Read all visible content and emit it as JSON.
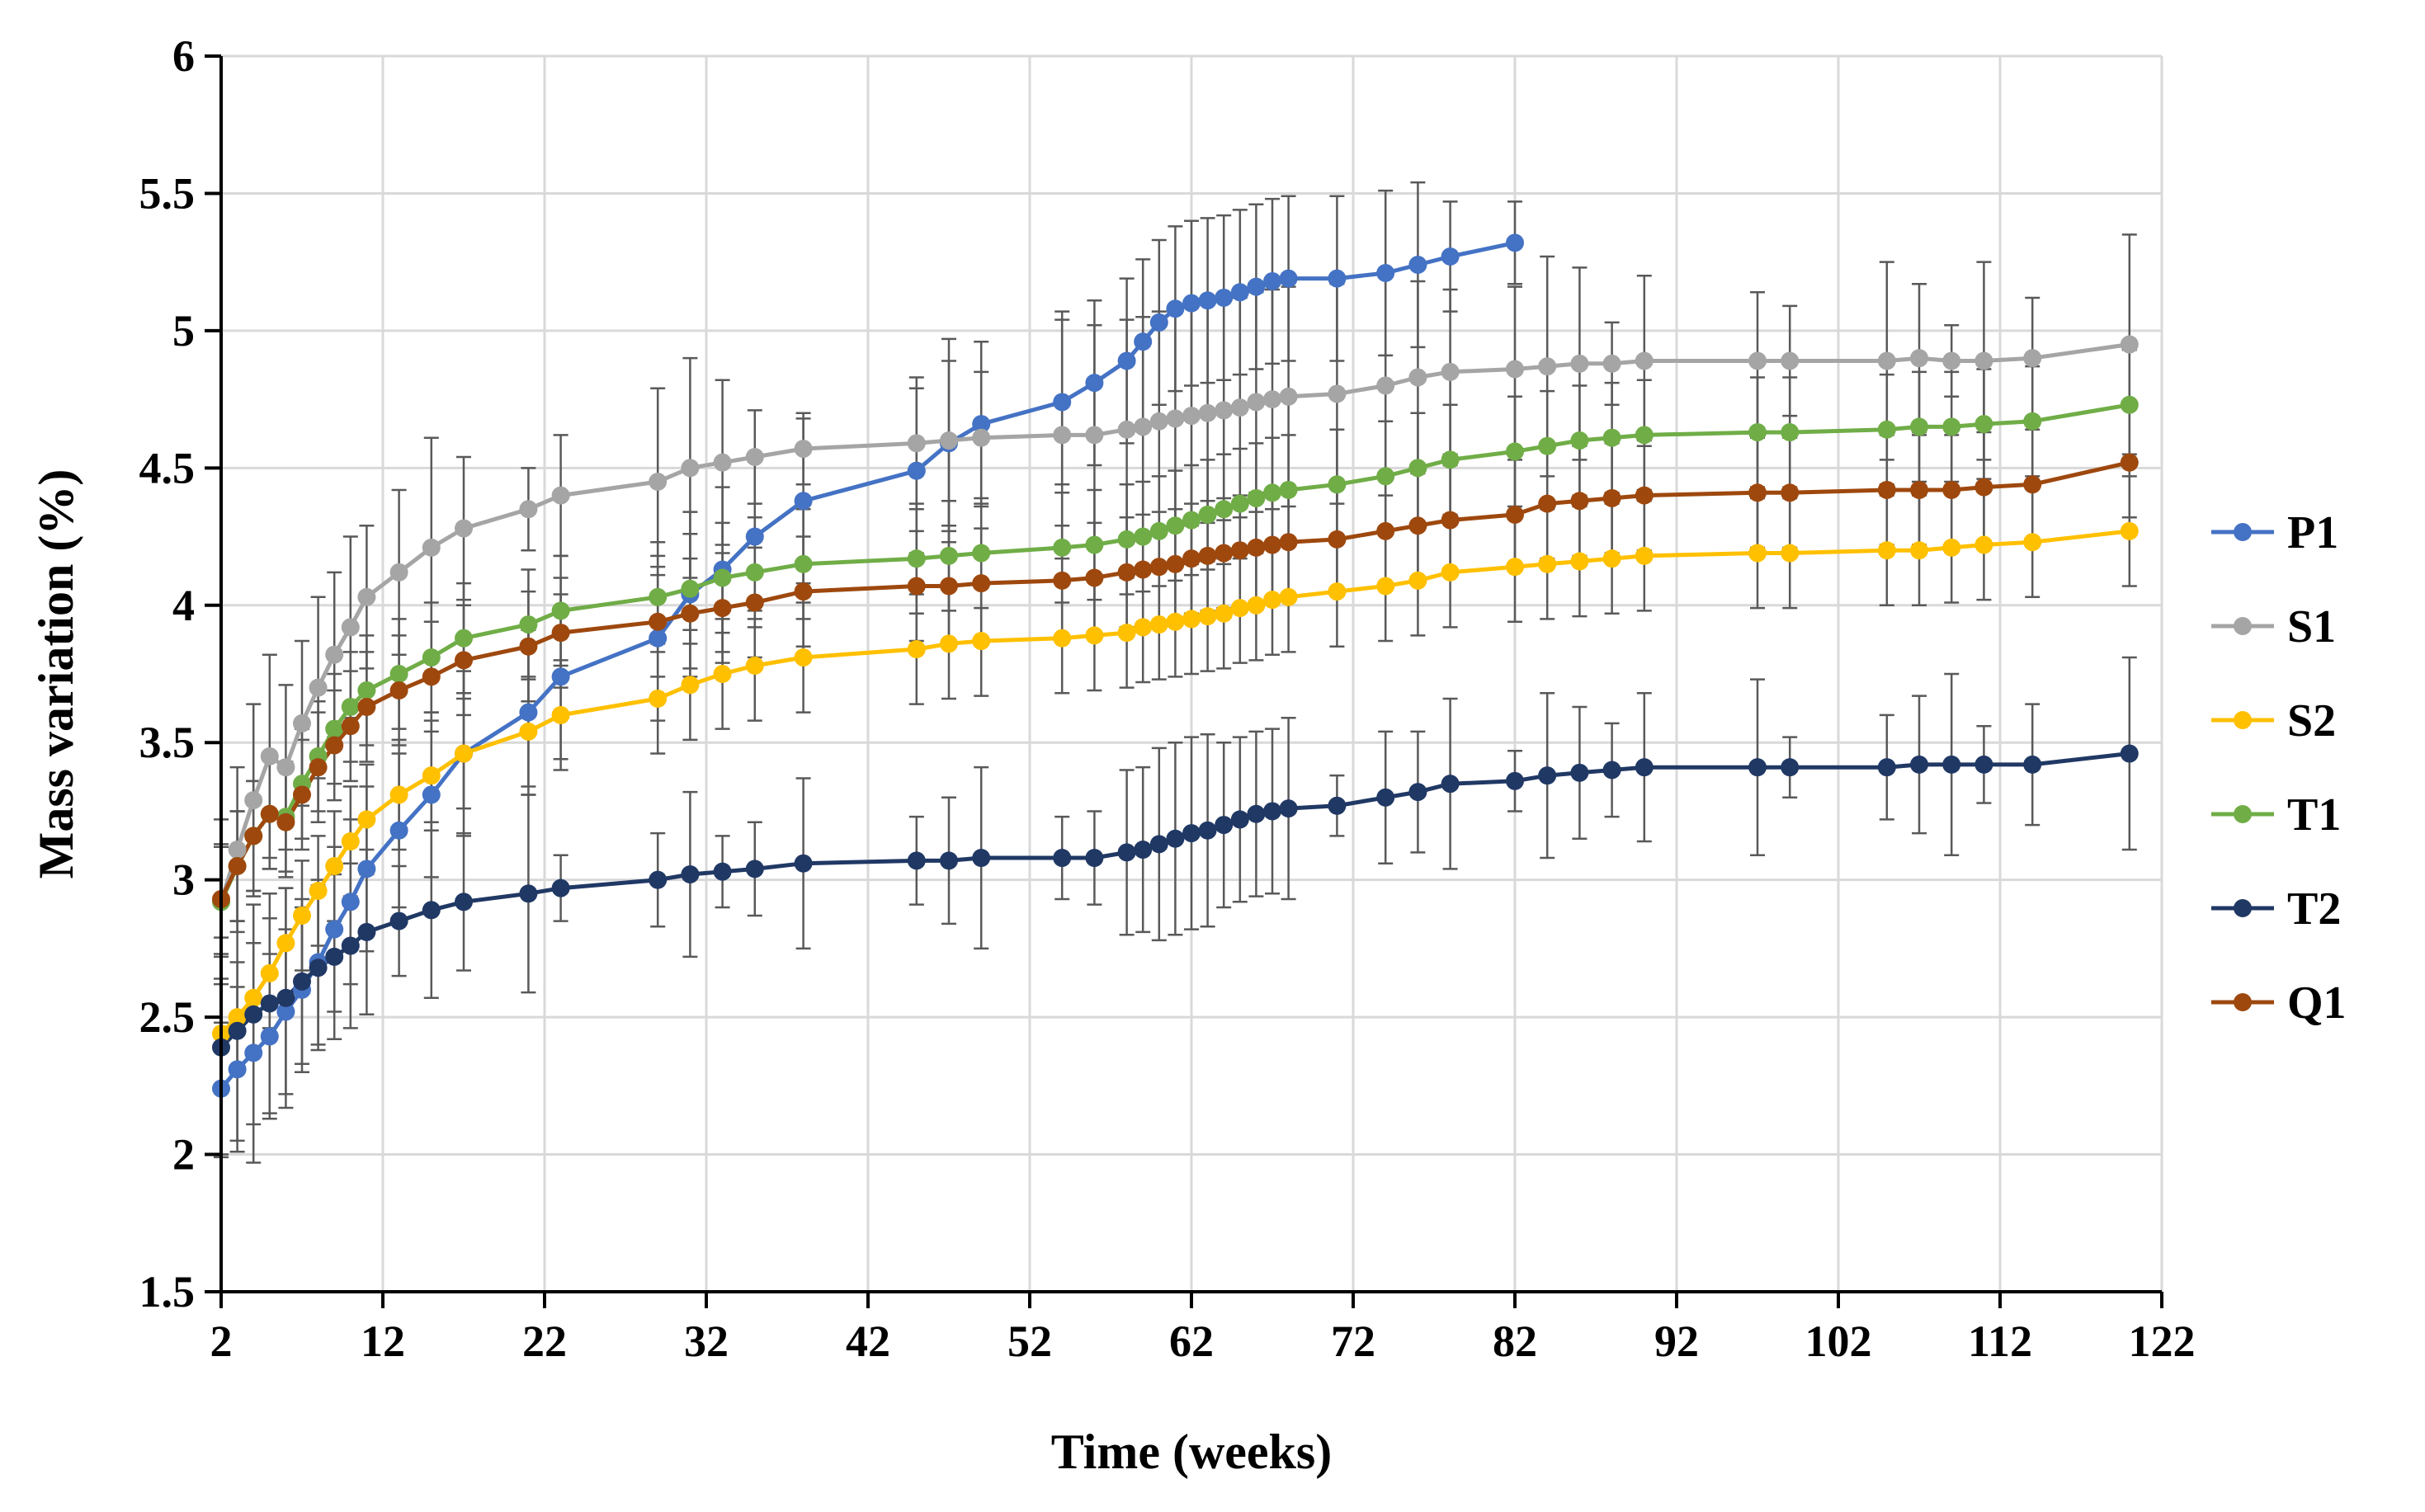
{
  "chart_data": {
    "type": "line",
    "xlabel": "Time (weeks)",
    "ylabel": "Mass variation (%)",
    "xlim": [
      2,
      122
    ],
    "ylim": [
      1.5,
      6
    ],
    "x_ticks": [
      2,
      12,
      22,
      32,
      42,
      52,
      62,
      72,
      82,
      92,
      102,
      112,
      122
    ],
    "y_ticks": [
      1.5,
      2,
      2.5,
      3,
      3.5,
      4,
      4.5,
      5,
      5.5,
      6
    ],
    "grid": true,
    "legend_position": "right",
    "series": [
      {
        "name": "P1",
        "color": "#4472C4",
        "x": [
          2,
          3,
          4,
          5,
          6,
          7,
          8,
          9,
          10,
          11,
          13,
          15,
          17,
          21,
          23,
          29,
          31,
          33,
          35,
          38,
          45,
          47,
          49,
          54,
          56,
          58,
          59,
          60,
          61,
          62,
          63,
          64,
          65,
          66,
          67,
          68,
          71,
          74,
          76,
          78,
          82
        ],
        "y": [
          2.24,
          2.31,
          2.37,
          2.43,
          2.52,
          2.6,
          2.7,
          2.82,
          2.92,
          3.04,
          3.18,
          3.31,
          3.46,
          3.61,
          3.74,
          3.88,
          4.04,
          4.13,
          4.25,
          4.38,
          4.49,
          4.59,
          4.66,
          4.74,
          4.81,
          4.89,
          4.96,
          5.03,
          5.08,
          5.1,
          5.11,
          5.12,
          5.14,
          5.16,
          5.18,
          5.19,
          5.19,
          5.21,
          5.24,
          5.27,
          5.32
        ],
        "err": [
          0.24,
          0.3,
          0.4,
          0.3,
          0.3,
          0.3,
          0.3,
          0.3,
          0.3,
          0.3,
          0.28,
          0.3,
          0.3,
          0.3,
          0.3,
          0.3,
          0.3,
          0.3,
          0.3,
          0.3,
          0.3,
          0.3,
          0.3,
          0.3,
          0.3,
          0.3,
          0.3,
          0.3,
          0.3,
          0.3,
          0.3,
          0.3,
          0.3,
          0.3,
          0.3,
          0.3,
          0.3,
          0.3,
          0.3,
          0.2,
          0.15
        ]
      },
      {
        "name": "S1",
        "color": "#A5A5A5",
        "x": [
          2,
          3,
          4,
          5,
          6,
          7,
          8,
          9,
          10,
          11,
          13,
          15,
          17,
          21,
          23,
          29,
          31,
          33,
          35,
          38,
          45,
          47,
          49,
          54,
          56,
          58,
          59,
          60,
          61,
          62,
          63,
          64,
          65,
          66,
          67,
          68,
          71,
          74,
          76,
          78,
          82,
          84,
          86,
          88,
          90,
          97,
          99,
          105,
          107,
          109,
          111,
          114,
          120
        ],
        "y": [
          2.92,
          3.11,
          3.29,
          3.45,
          3.41,
          3.57,
          3.7,
          3.82,
          3.92,
          4.03,
          4.12,
          4.21,
          4.28,
          4.35,
          4.4,
          4.45,
          4.5,
          4.52,
          4.54,
          4.57,
          4.59,
          4.6,
          4.61,
          4.62,
          4.62,
          4.64,
          4.65,
          4.67,
          4.68,
          4.69,
          4.7,
          4.71,
          4.72,
          4.74,
          4.75,
          4.76,
          4.77,
          4.8,
          4.83,
          4.85,
          4.86,
          4.87,
          4.88,
          4.88,
          4.89,
          4.89,
          4.89,
          4.89,
          4.9,
          4.89,
          4.89,
          4.9,
          4.95
        ],
        "err": [
          0.3,
          0.3,
          0.35,
          0.37,
          0.3,
          0.3,
          0.33,
          0.3,
          0.33,
          0.26,
          0.3,
          0.4,
          0.26,
          0.15,
          0.22,
          0.34,
          0.4,
          0.3,
          0.17,
          0.13,
          0.24,
          0.37,
          0.24,
          0.45,
          0.4,
          0.4,
          0.4,
          0.4,
          0.4,
          0.4,
          0.4,
          0.4,
          0.4,
          0.4,
          0.4,
          0.4,
          0.4,
          0.4,
          0.35,
          0.3,
          0.3,
          0.4,
          0.35,
          0.15,
          0.31,
          0.25,
          0.2,
          0.36,
          0.27,
          0.13,
          0.36,
          0.22,
          0.4
        ]
      },
      {
        "name": "S2",
        "color": "#FFC000",
        "x": [
          2,
          3,
          4,
          5,
          6,
          7,
          8,
          9,
          10,
          11,
          13,
          15,
          17,
          21,
          23,
          29,
          31,
          33,
          35,
          38,
          45,
          47,
          49,
          54,
          56,
          58,
          59,
          60,
          61,
          62,
          63,
          64,
          65,
          66,
          67,
          68,
          71,
          74,
          76,
          78,
          82,
          84,
          86,
          88,
          90,
          97,
          99,
          105,
          107,
          109,
          111,
          114,
          120
        ],
        "y": [
          2.44,
          2.5,
          2.57,
          2.66,
          2.77,
          2.87,
          2.96,
          3.05,
          3.14,
          3.22,
          3.31,
          3.38,
          3.46,
          3.54,
          3.6,
          3.66,
          3.71,
          3.75,
          3.78,
          3.81,
          3.84,
          3.86,
          3.87,
          3.88,
          3.89,
          3.9,
          3.92,
          3.93,
          3.94,
          3.95,
          3.96,
          3.97,
          3.99,
          4.0,
          4.02,
          4.03,
          4.05,
          4.07,
          4.09,
          4.12,
          4.14,
          4.15,
          4.16,
          4.17,
          4.18,
          4.19,
          4.19,
          4.2,
          4.2,
          4.21,
          4.22,
          4.23,
          4.27
        ],
        "err": [
          0.2,
          0.2,
          0.2,
          0.2,
          0.2,
          0.2,
          0.2,
          0.2,
          0.2,
          0.2,
          0.2,
          0.2,
          0.2,
          0.2,
          0.2,
          0.2,
          0.2,
          0.2,
          0.2,
          0.2,
          0.2,
          0.2,
          0.2,
          0.2,
          0.2,
          0.2,
          0.2,
          0.2,
          0.2,
          0.2,
          0.2,
          0.2,
          0.2,
          0.2,
          0.2,
          0.2,
          0.2,
          0.2,
          0.2,
          0.2,
          0.2,
          0.2,
          0.2,
          0.2,
          0.2,
          0.2,
          0.2,
          0.2,
          0.2,
          0.2,
          0.2,
          0.2,
          0.2
        ]
      },
      {
        "name": "T1",
        "color": "#70AD47",
        "x": [
          2,
          3,
          4,
          5,
          6,
          7,
          8,
          9,
          10,
          11,
          13,
          15,
          17,
          21,
          23,
          29,
          31,
          33,
          35,
          38,
          45,
          47,
          49,
          54,
          56,
          58,
          59,
          60,
          61,
          62,
          63,
          64,
          65,
          66,
          67,
          68,
          71,
          74,
          76,
          78,
          82,
          84,
          86,
          88,
          90,
          97,
          99,
          105,
          107,
          109,
          111,
          114,
          120
        ],
        "y": [
          2.92,
          3.05,
          3.16,
          3.24,
          3.23,
          3.35,
          3.45,
          3.55,
          3.63,
          3.69,
          3.75,
          3.81,
          3.88,
          3.93,
          3.98,
          4.03,
          4.06,
          4.1,
          4.12,
          4.15,
          4.17,
          4.18,
          4.19,
          4.21,
          4.22,
          4.24,
          4.25,
          4.27,
          4.29,
          4.31,
          4.33,
          4.35,
          4.37,
          4.39,
          4.41,
          4.42,
          4.44,
          4.47,
          4.5,
          4.53,
          4.56,
          4.58,
          4.6,
          4.61,
          4.62,
          4.63,
          4.63,
          4.64,
          4.65,
          4.65,
          4.66,
          4.67,
          4.73
        ],
        "err": [
          0.2,
          0.2,
          0.2,
          0.2,
          0.2,
          0.2,
          0.2,
          0.2,
          0.2,
          0.2,
          0.2,
          0.2,
          0.2,
          0.2,
          0.2,
          0.2,
          0.2,
          0.2,
          0.2,
          0.2,
          0.2,
          0.2,
          0.2,
          0.2,
          0.2,
          0.2,
          0.2,
          0.2,
          0.2,
          0.2,
          0.2,
          0.2,
          0.2,
          0.2,
          0.2,
          0.2,
          0.2,
          0.2,
          0.2,
          0.2,
          0.2,
          0.2,
          0.2,
          0.2,
          0.2,
          0.2,
          0.2,
          0.2,
          0.2,
          0.2,
          0.2,
          0.2,
          0.2
        ]
      },
      {
        "name": "T2",
        "color": "#203864",
        "x": [
          2,
          3,
          4,
          5,
          6,
          7,
          8,
          9,
          10,
          11,
          13,
          15,
          17,
          21,
          23,
          29,
          31,
          33,
          35,
          38,
          45,
          47,
          49,
          54,
          56,
          58,
          59,
          60,
          61,
          62,
          63,
          64,
          65,
          66,
          67,
          68,
          71,
          74,
          76,
          78,
          82,
          84,
          86,
          88,
          90,
          97,
          99,
          105,
          107,
          109,
          111,
          114,
          120
        ],
        "y": [
          2.39,
          2.45,
          2.51,
          2.55,
          2.57,
          2.63,
          2.68,
          2.72,
          2.76,
          2.81,
          2.85,
          2.89,
          2.92,
          2.95,
          2.97,
          3.0,
          3.02,
          3.03,
          3.04,
          3.06,
          3.07,
          3.07,
          3.08,
          3.08,
          3.08,
          3.1,
          3.11,
          3.13,
          3.15,
          3.17,
          3.18,
          3.2,
          3.22,
          3.24,
          3.25,
          3.26,
          3.27,
          3.3,
          3.32,
          3.35,
          3.36,
          3.38,
          3.39,
          3.4,
          3.41,
          3.41,
          3.41,
          3.41,
          3.42,
          3.42,
          3.42,
          3.42,
          3.46
        ],
        "err": [
          0.4,
          0.4,
          0.4,
          0.4,
          0.4,
          0.3,
          0.3,
          0.3,
          0.3,
          0.3,
          0.2,
          0.32,
          0.25,
          0.36,
          0.12,
          0.17,
          0.3,
          0.13,
          0.17,
          0.31,
          0.16,
          0.23,
          0.33,
          0.15,
          0.17,
          0.3,
          0.3,
          0.35,
          0.35,
          0.35,
          0.35,
          0.3,
          0.3,
          0.3,
          0.3,
          0.33,
          0.11,
          0.24,
          0.22,
          0.31,
          0.11,
          0.3,
          0.24,
          0.17,
          0.27,
          0.32,
          0.11,
          0.19,
          0.25,
          0.33,
          0.14,
          0.22,
          0.35
        ]
      },
      {
        "name": "Q1",
        "color": "#9E480E",
        "x": [
          2,
          3,
          4,
          5,
          6,
          7,
          8,
          9,
          10,
          11,
          13,
          15,
          17,
          21,
          23,
          29,
          31,
          33,
          35,
          38,
          45,
          47,
          49,
          54,
          56,
          58,
          59,
          60,
          61,
          62,
          63,
          64,
          65,
          66,
          67,
          68,
          71,
          74,
          76,
          78,
          82,
          84,
          86,
          88,
          90,
          97,
          99,
          105,
          107,
          109,
          111,
          114,
          120
        ],
        "y": [
          2.93,
          3.05,
          3.16,
          3.24,
          3.21,
          3.31,
          3.41,
          3.49,
          3.56,
          3.63,
          3.69,
          3.74,
          3.8,
          3.85,
          3.9,
          3.94,
          3.97,
          3.99,
          4.01,
          4.05,
          4.07,
          4.07,
          4.08,
          4.09,
          4.1,
          4.12,
          4.13,
          4.14,
          4.15,
          4.17,
          4.18,
          4.19,
          4.2,
          4.21,
          4.22,
          4.23,
          4.24,
          4.27,
          4.29,
          4.31,
          4.33,
          4.37,
          4.38,
          4.39,
          4.4,
          4.41,
          4.41,
          4.42,
          4.42,
          4.42,
          4.43,
          4.44,
          4.52
        ],
        "err": [
          0.2,
          0.2,
          0.2,
          0.2,
          0.2,
          0.2,
          0.2,
          0.2,
          0.2,
          0.2,
          0.2,
          0.2,
          0.2,
          0.2,
          0.2,
          0.2,
          0.2,
          0.2,
          0.2,
          0.2,
          0.2,
          0.2,
          0.2,
          0.2,
          0.2,
          0.2,
          0.2,
          0.2,
          0.2,
          0.2,
          0.2,
          0.2,
          0.2,
          0.2,
          0.2,
          0.2,
          0.2,
          0.2,
          0.2,
          0.2,
          0.2,
          0.2,
          0.2,
          0.2,
          0.2,
          0.2,
          0.2,
          0.2,
          0.2,
          0.2,
          0.2,
          0.2,
          0.2
        ]
      }
    ]
  }
}
